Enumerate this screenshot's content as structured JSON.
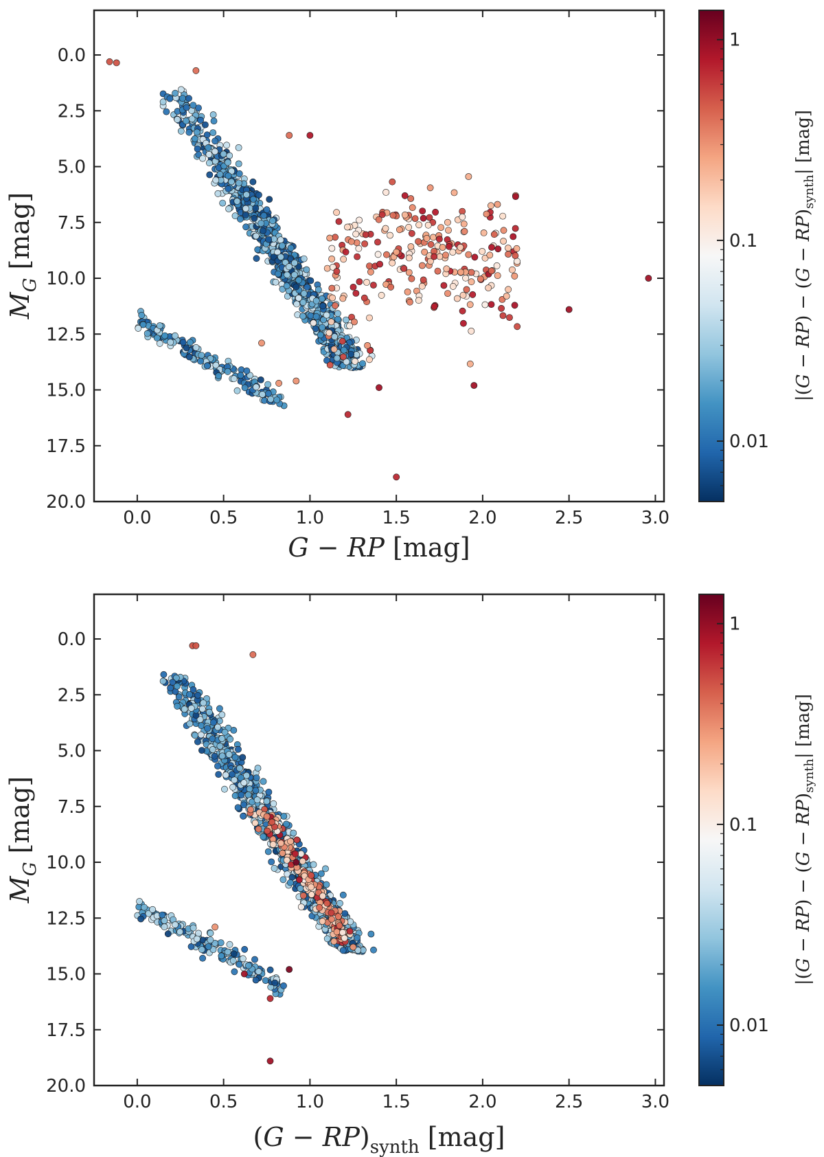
{
  "chart_data": [
    {
      "type": "scatter",
      "title": "",
      "xlabel": "G − RP [mag]",
      "ylabel": "M_G [mag]",
      "xlim": [
        -0.25,
        3.05
      ],
      "ylim": [
        20.0,
        -2.0
      ],
      "yaxis_inverted": true,
      "grid": false,
      "x_ticks": [
        "0.0",
        "0.5",
        "1.0",
        "1.5",
        "2.0",
        "2.5",
        "3.0"
      ],
      "y_ticks": [
        "0.0",
        "2.5",
        "5.0",
        "7.5",
        "10.0",
        "12.5",
        "15.0",
        "17.5",
        "20.0"
      ],
      "colorbar": {
        "label": "|(G − RP) − (G − RP)synth| [mag]",
        "scale": "log",
        "range": [
          0.005,
          1.4
        ],
        "ticks": [
          "0.01",
          "0.1",
          "1"
        ],
        "colormap": "RdBu_r",
        "colormap_stops": [
          "#053061",
          "#2166ac",
          "#4393c3",
          "#92c5de",
          "#d1e5f0",
          "#f7f7f7",
          "#fddbc7",
          "#f4a582",
          "#d6604d",
          "#b2182b",
          "#67001f"
        ]
      },
      "groups": [
        {
          "name": "main sequence",
          "x_range": [
            0.2,
            1.45
          ],
          "y_range": [
            1.5,
            14.0
          ],
          "color_range": [
            0.006,
            0.05
          ],
          "count": 1000
        },
        {
          "name": "white dwarfs",
          "x_range": [
            0.0,
            0.85
          ],
          "y_range": [
            11.8,
            15.8
          ],
          "color_range": [
            0.006,
            0.05
          ],
          "count": 160
        },
        {
          "name": "red offset stars",
          "x_range": [
            1.0,
            2.2
          ],
          "y_range": [
            7.0,
            15.0
          ],
          "color_range": [
            0.1,
            0.9
          ],
          "count": 260
        }
      ],
      "outliers": [
        {
          "x": -0.16,
          "y": 0.3,
          "c": 0.5
        },
        {
          "x": -0.12,
          "y": 0.35,
          "c": 0.5
        },
        {
          "x": 0.34,
          "y": 0.7,
          "c": 0.4
        },
        {
          "x": 0.88,
          "y": 3.6,
          "c": 0.4
        },
        {
          "x": 1.0,
          "y": 3.6,
          "c": 0.8
        },
        {
          "x": 1.55,
          "y": 6.3,
          "c": 0.8
        },
        {
          "x": 2.96,
          "y": 10.0,
          "c": 0.9
        },
        {
          "x": 2.5,
          "y": 11.4,
          "c": 0.9
        },
        {
          "x": 1.22,
          "y": 16.1,
          "c": 0.7
        },
        {
          "x": 1.5,
          "y": 18.9,
          "c": 0.7
        },
        {
          "x": 0.72,
          "y": 12.9,
          "c": 0.3
        },
        {
          "x": 0.82,
          "y": 14.7,
          "c": 0.3
        },
        {
          "x": 0.92,
          "y": 14.6,
          "c": 0.3
        },
        {
          "x": 1.4,
          "y": 14.9,
          "c": 0.9
        },
        {
          "x": 1.95,
          "y": 14.8,
          "c": 0.9
        },
        {
          "x": 1.02,
          "y": 12.0,
          "c": 0.1
        }
      ]
    },
    {
      "type": "scatter",
      "title": "",
      "xlabel": "(G − RP)synth [mag]",
      "ylabel": "M_G [mag]",
      "xlim": [
        -0.25,
        3.05
      ],
      "ylim": [
        20.0,
        -2.0
      ],
      "yaxis_inverted": true,
      "grid": false,
      "x_ticks": [
        "0.0",
        "0.5",
        "1.0",
        "1.5",
        "2.0",
        "2.5",
        "3.0"
      ],
      "y_ticks": [
        "0.0",
        "2.5",
        "5.0",
        "7.5",
        "10.0",
        "12.5",
        "15.0",
        "17.5",
        "20.0"
      ],
      "colorbar": {
        "label": "|(G − RP) − (G − RP)synth| [mag]",
        "scale": "log",
        "range": [
          0.005,
          1.4
        ],
        "ticks": [
          "0.01",
          "0.1",
          "1"
        ],
        "colormap": "RdBu_r",
        "colormap_stops": [
          "#053061",
          "#2166ac",
          "#4393c3",
          "#92c5de",
          "#d1e5f0",
          "#f7f7f7",
          "#fddbc7",
          "#f4a582",
          "#d6604d",
          "#b2182b",
          "#67001f"
        ]
      },
      "groups": [
        {
          "name": "main sequence",
          "x_range": [
            0.2,
            1.45
          ],
          "y_range": [
            1.5,
            14.0
          ],
          "color_range": [
            0.006,
            0.05
          ],
          "count": 1000
        },
        {
          "name": "white dwarfs",
          "x_range": [
            0.0,
            0.85
          ],
          "y_range": [
            11.8,
            15.8
          ],
          "color_range": [
            0.006,
            0.05
          ],
          "count": 160
        },
        {
          "name": "red offset stars (shifted onto sequence)",
          "x_range": [
            1.0,
            1.45
          ],
          "y_range": [
            7.5,
            13.8
          ],
          "color_range": [
            0.1,
            0.9
          ],
          "count": 200
        }
      ],
      "outliers": [
        {
          "x": 0.32,
          "y": 0.3,
          "c": 0.5
        },
        {
          "x": 0.34,
          "y": 0.3,
          "c": 0.5
        },
        {
          "x": 0.67,
          "y": 0.7,
          "c": 0.4
        },
        {
          "x": 0.92,
          "y": 10.0,
          "c": 1.3
        },
        {
          "x": 0.78,
          "y": 8.2,
          "c": 0.5
        },
        {
          "x": 0.77,
          "y": 16.1,
          "c": 0.7
        },
        {
          "x": 0.77,
          "y": 18.9,
          "c": 0.9
        },
        {
          "x": 0.88,
          "y": 14.8,
          "c": 1.2
        },
        {
          "x": 0.45,
          "y": 12.9,
          "c": 0.3
        },
        {
          "x": 0.95,
          "y": 12.0,
          "c": 0.1
        },
        {
          "x": 1.25,
          "y": 13.8,
          "c": 0.3
        },
        {
          "x": 0.62,
          "y": 15.0,
          "c": 0.9
        }
      ]
    }
  ]
}
